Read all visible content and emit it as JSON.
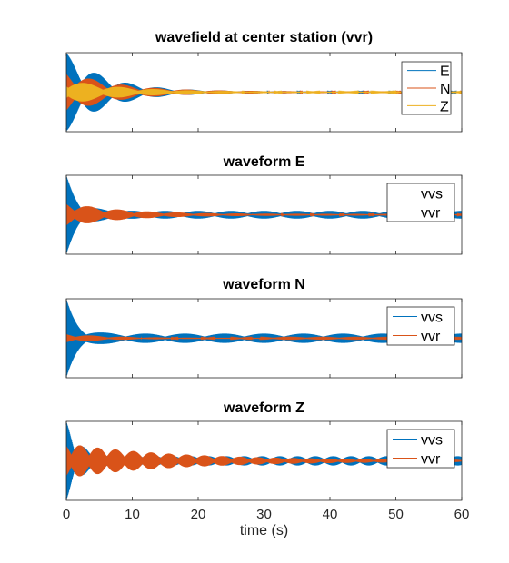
{
  "chart_data": [
    {
      "type": "line",
      "title": "wavefield at center station (vvr)",
      "xlim": [
        0,
        60
      ],
      "legend_position": "top-right",
      "series": [
        {
          "name": "E",
          "color": "#0072BD",
          "env_start": 1.0,
          "env_decay": 0.16,
          "env_floor": 0.02,
          "beat_period": 4.7
        },
        {
          "name": "N",
          "color": "#D95319",
          "env_start": 0.55,
          "env_decay": 0.13,
          "env_floor": 0.02,
          "beat_period": 4.9
        },
        {
          "name": "Z",
          "color": "#EDB120",
          "env_start": 0.32,
          "env_decay": 0.11,
          "env_floor": 0.01,
          "beat_period": 5.3
        }
      ]
    },
    {
      "type": "line",
      "title": "waveform E",
      "xlim": [
        0,
        60
      ],
      "legend_position": "top-right",
      "series": [
        {
          "name": "vvs",
          "color": "#0072BD",
          "env_start": 1.0,
          "env_decay": 0.55,
          "env_floor": 0.1,
          "beat_period": 5.0
        },
        {
          "name": "vvr",
          "color": "#D95319",
          "env_start": 0.32,
          "env_decay": 0.12,
          "env_floor": 0.02,
          "beat_period": 4.5
        }
      ]
    },
    {
      "type": "line",
      "title": "waveform N",
      "xlim": [
        0,
        60
      ],
      "legend_position": "top-right",
      "series": [
        {
          "name": "vvs",
          "color": "#0072BD",
          "env_start": 1.0,
          "env_decay": 0.6,
          "env_floor": 0.12,
          "beat_period": 6.0
        },
        {
          "name": "vvr",
          "color": "#D95319",
          "env_start": 0.12,
          "env_decay": 0.15,
          "env_floor": 0.01,
          "beat_period": 5.0
        }
      ]
    },
    {
      "type": "line",
      "title": "waveform Z",
      "xlim": [
        0,
        60
      ],
      "xlabel": "time (s)",
      "xticks": [
        "0",
        "10",
        "20",
        "30",
        "40",
        "50",
        "60"
      ],
      "legend_position": "top-right",
      "series": [
        {
          "name": "vvs",
          "color": "#0072BD",
          "env_start": 1.0,
          "env_decay": 0.5,
          "env_floor": 0.12,
          "beat_period": 2.7
        },
        {
          "name": "vvr",
          "color": "#D95319",
          "env_start": 0.45,
          "env_decay": 0.06,
          "env_floor": 0.02,
          "beat_period": 2.7
        }
      ]
    }
  ]
}
